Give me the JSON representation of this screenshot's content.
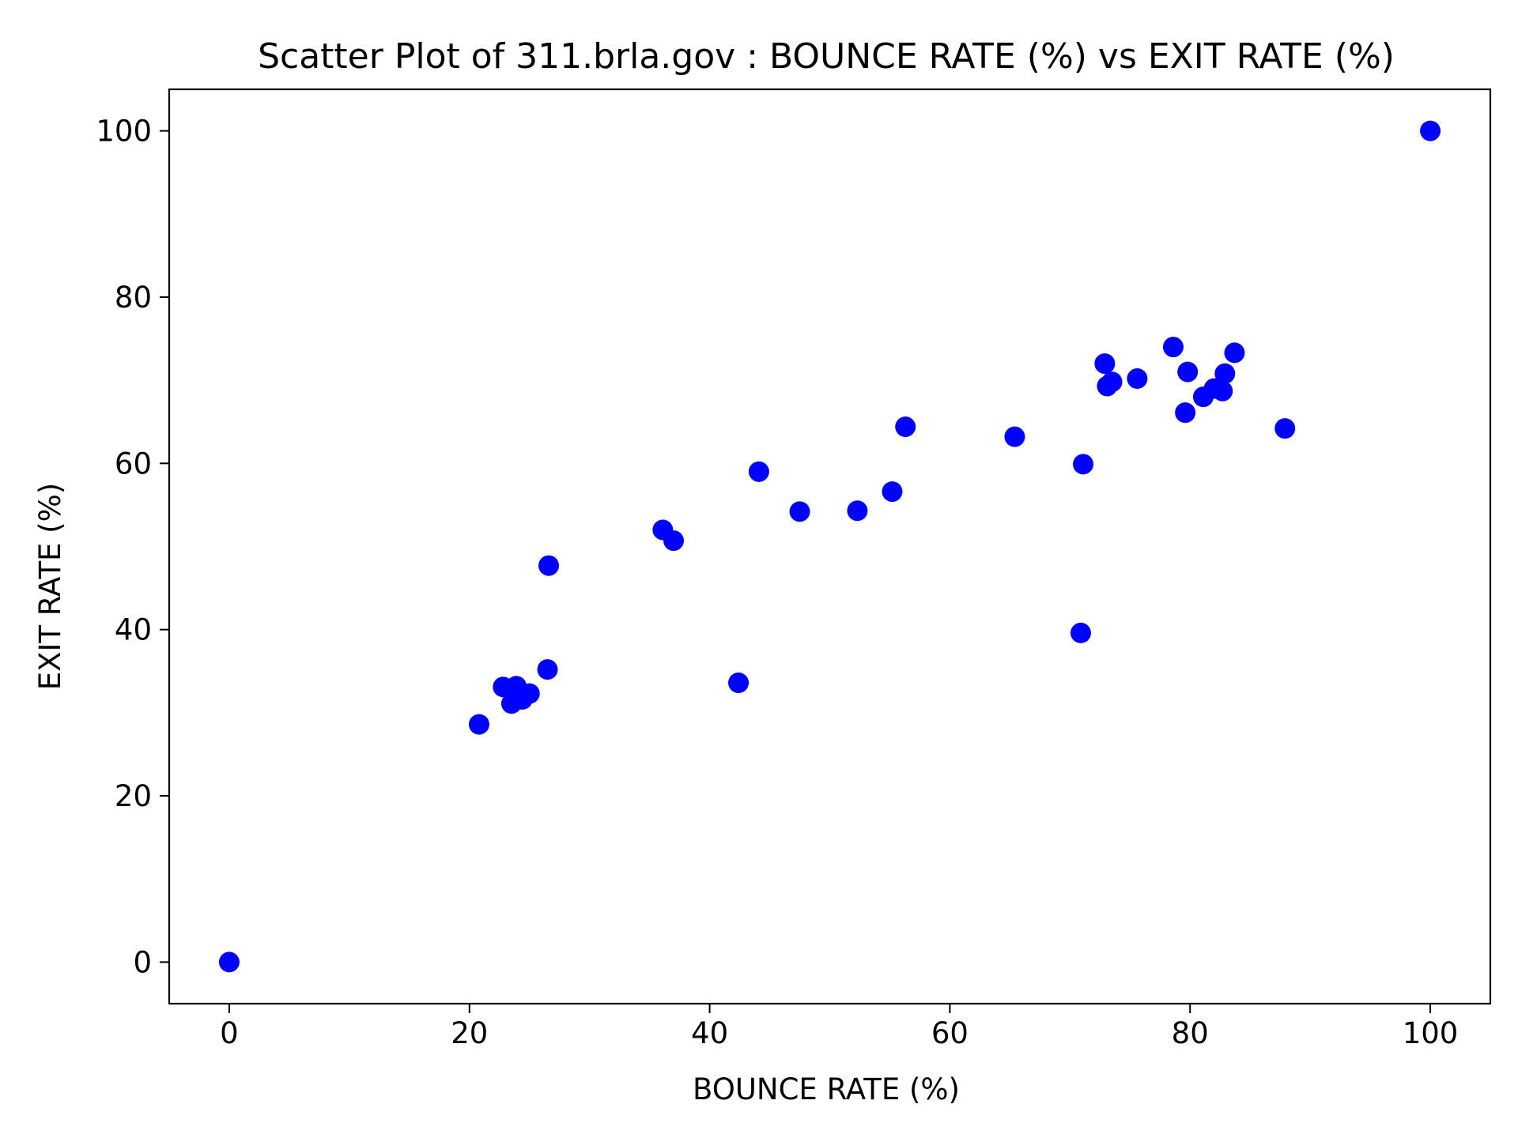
{
  "chart_data": {
    "type": "scatter",
    "title": "Scatter Plot of 311.brla.gov : BOUNCE RATE (%) vs EXIT RATE (%)",
    "xlabel": "BOUNCE RATE (%)",
    "ylabel": "EXIT RATE (%)",
    "xlim": [
      -5,
      105
    ],
    "ylim": [
      -5,
      105
    ],
    "xticks": [
      0,
      20,
      40,
      60,
      80,
      100
    ],
    "yticks": [
      0,
      20,
      40,
      60,
      80,
      100
    ],
    "xtick_labels": [
      "0",
      "20",
      "40",
      "60",
      "80",
      "100"
    ],
    "ytick_labels": [
      "0",
      "20",
      "40",
      "60",
      "80",
      "100"
    ],
    "grid": false,
    "marker_color": "#0000ff",
    "points": [
      {
        "x": 0,
        "y": 0
      },
      {
        "x": 20.8,
        "y": 28.6
      },
      {
        "x": 22.8,
        "y": 33.1
      },
      {
        "x": 23.9,
        "y": 33.2
      },
      {
        "x": 23.5,
        "y": 31.1
      },
      {
        "x": 24.4,
        "y": 31.6
      },
      {
        "x": 25.0,
        "y": 32.3
      },
      {
        "x": 26.5,
        "y": 35.2
      },
      {
        "x": 26.6,
        "y": 47.7
      },
      {
        "x": 36.1,
        "y": 52.0
      },
      {
        "x": 37.0,
        "y": 50.7
      },
      {
        "x": 42.4,
        "y": 33.6
      },
      {
        "x": 44.1,
        "y": 59.0
      },
      {
        "x": 47.5,
        "y": 54.2
      },
      {
        "x": 52.3,
        "y": 54.3
      },
      {
        "x": 55.2,
        "y": 56.6
      },
      {
        "x": 56.3,
        "y": 64.4
      },
      {
        "x": 65.4,
        "y": 63.2
      },
      {
        "x": 70.9,
        "y": 39.6
      },
      {
        "x": 71.1,
        "y": 59.9
      },
      {
        "x": 72.9,
        "y": 72.0
      },
      {
        "x": 73.1,
        "y": 69.3
      },
      {
        "x": 73.5,
        "y": 69.8
      },
      {
        "x": 75.6,
        "y": 70.2
      },
      {
        "x": 78.6,
        "y": 74.0
      },
      {
        "x": 79.6,
        "y": 66.1
      },
      {
        "x": 79.8,
        "y": 71.0
      },
      {
        "x": 81.1,
        "y": 68.0
      },
      {
        "x": 82.0,
        "y": 69.0
      },
      {
        "x": 82.7,
        "y": 68.7
      },
      {
        "x": 82.9,
        "y": 70.8
      },
      {
        "x": 83.7,
        "y": 73.3
      },
      {
        "x": 87.9,
        "y": 64.2
      },
      {
        "x": 100,
        "y": 100
      }
    ]
  }
}
